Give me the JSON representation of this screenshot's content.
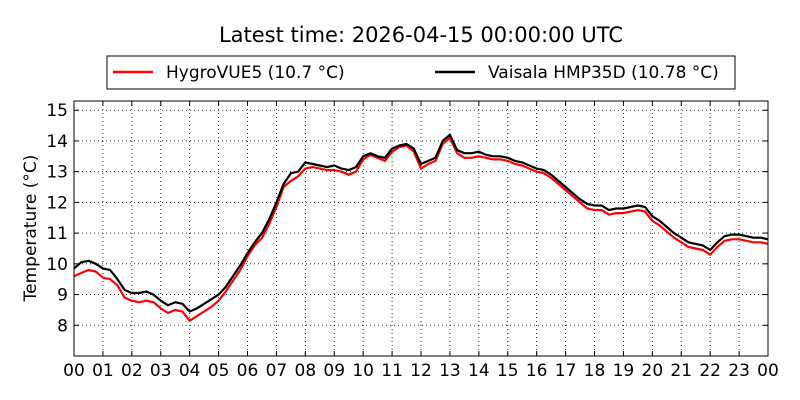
{
  "chart_data": {
    "type": "line",
    "title": "Latest time: 2026-04-15 00:00:00 UTC",
    "xlabel": "",
    "ylabel": "Temperature (°C)",
    "xlim": [
      0,
      24
    ],
    "ylim": [
      7,
      15.3
    ],
    "grid": true,
    "legend_position": "top-center",
    "x_ticks": [
      0,
      1,
      2,
      3,
      4,
      5,
      6,
      7,
      8,
      9,
      10,
      11,
      12,
      13,
      14,
      15,
      16,
      17,
      18,
      19,
      20,
      21,
      22,
      23,
      24
    ],
    "x_tick_labels": [
      "00",
      "01",
      "02",
      "03",
      "04",
      "05",
      "06",
      "07",
      "08",
      "09",
      "10",
      "11",
      "12",
      "13",
      "14",
      "15",
      "16",
      "17",
      "18",
      "19",
      "20",
      "21",
      "22",
      "23",
      "00"
    ],
    "y_ticks": [
      8,
      9,
      10,
      11,
      12,
      13,
      14,
      15
    ],
    "y_tick_labels": [
      "8",
      "9",
      "10",
      "11",
      "12",
      "13",
      "14",
      "15"
    ],
    "series": [
      {
        "name": "HygroVUE5 (10.7 °C)",
        "color": "#ff0000",
        "x": [
          0,
          0.25,
          0.5,
          0.75,
          1,
          1.25,
          1.5,
          1.75,
          2,
          2.25,
          2.5,
          2.75,
          3,
          3.25,
          3.5,
          3.75,
          4,
          4.25,
          4.5,
          4.75,
          5,
          5.25,
          5.5,
          5.75,
          6,
          6.25,
          6.5,
          6.75,
          7,
          7.25,
          7.5,
          7.75,
          8,
          8.25,
          8.5,
          8.75,
          9,
          9.25,
          9.5,
          9.75,
          10,
          10.25,
          10.5,
          10.75,
          11,
          11.25,
          11.5,
          11.75,
          12,
          12.25,
          12.5,
          12.75,
          13,
          13.25,
          13.5,
          13.75,
          14,
          14.25,
          14.5,
          14.75,
          15,
          15.25,
          15.5,
          15.75,
          16,
          16.25,
          16.5,
          16.75,
          17,
          17.25,
          17.5,
          17.75,
          18,
          18.25,
          18.5,
          18.75,
          19,
          19.25,
          19.5,
          19.75,
          20,
          20.25,
          20.5,
          20.75,
          21,
          21.25,
          21.5,
          21.75,
          22,
          22.25,
          22.5,
          22.75,
          23,
          23.25,
          23.5,
          23.75,
          24
        ],
        "y": [
          9.6,
          9.7,
          9.8,
          9.75,
          9.55,
          9.5,
          9.3,
          8.9,
          8.8,
          8.75,
          8.8,
          8.75,
          8.55,
          8.4,
          8.5,
          8.45,
          8.15,
          8.3,
          8.45,
          8.6,
          8.8,
          9.1,
          9.45,
          9.8,
          10.25,
          10.6,
          10.85,
          11.3,
          11.85,
          12.5,
          12.7,
          12.85,
          13.1,
          13.15,
          13.1,
          13.05,
          13.05,
          13.0,
          12.9,
          13.0,
          13.4,
          13.55,
          13.45,
          13.35,
          13.65,
          13.8,
          13.85,
          13.65,
          13.1,
          13.25,
          13.35,
          13.9,
          14.1,
          13.6,
          13.45,
          13.45,
          13.5,
          13.45,
          13.4,
          13.4,
          13.35,
          13.25,
          13.2,
          13.1,
          13.0,
          12.95,
          12.8,
          12.6,
          12.4,
          12.2,
          12.0,
          11.8,
          11.75,
          11.75,
          11.6,
          11.65,
          11.65,
          11.7,
          11.75,
          11.7,
          11.4,
          11.25,
          11.05,
          10.85,
          10.7,
          10.55,
          10.5,
          10.45,
          10.3,
          10.55,
          10.75,
          10.8,
          10.8,
          10.75,
          10.7,
          10.7,
          10.65
        ]
      },
      {
        "name": "Vaisala HMP35D (10.78 °C)",
        "color": "#000000",
        "x": [
          0,
          0.25,
          0.5,
          0.75,
          1,
          1.25,
          1.5,
          1.75,
          2,
          2.25,
          2.5,
          2.75,
          3,
          3.25,
          3.5,
          3.75,
          4,
          4.25,
          4.5,
          4.75,
          5,
          5.25,
          5.5,
          5.75,
          6,
          6.25,
          6.5,
          6.75,
          7,
          7.25,
          7.5,
          7.75,
          8,
          8.25,
          8.5,
          8.75,
          9,
          9.25,
          9.5,
          9.75,
          10,
          10.25,
          10.5,
          10.75,
          11,
          11.25,
          11.5,
          11.75,
          12,
          12.25,
          12.5,
          12.75,
          13,
          13.25,
          13.5,
          13.75,
          14,
          14.25,
          14.5,
          14.75,
          15,
          15.25,
          15.5,
          15.75,
          16,
          16.25,
          16.5,
          16.75,
          17,
          17.25,
          17.5,
          17.75,
          18,
          18.25,
          18.5,
          18.75,
          19,
          19.25,
          19.5,
          19.75,
          20,
          20.25,
          20.5,
          20.75,
          21,
          21.25,
          21.5,
          21.75,
          22,
          22.25,
          22.5,
          22.75,
          23,
          23.25,
          23.5,
          23.75,
          24
        ],
        "y": [
          9.85,
          10.05,
          10.1,
          10.0,
          9.85,
          9.8,
          9.5,
          9.15,
          9.05,
          9.05,
          9.1,
          9.0,
          8.8,
          8.65,
          8.75,
          8.7,
          8.45,
          8.55,
          8.7,
          8.85,
          9.0,
          9.25,
          9.6,
          9.95,
          10.35,
          10.7,
          11.0,
          11.45,
          12.0,
          12.6,
          12.95,
          13.0,
          13.3,
          13.25,
          13.2,
          13.15,
          13.2,
          13.1,
          13.05,
          13.15,
          13.5,
          13.6,
          13.5,
          13.45,
          13.75,
          13.85,
          13.9,
          13.75,
          13.25,
          13.35,
          13.45,
          14.0,
          14.2,
          13.7,
          13.6,
          13.6,
          13.65,
          13.55,
          13.5,
          13.5,
          13.45,
          13.35,
          13.3,
          13.2,
          13.1,
          13.05,
          12.9,
          12.7,
          12.5,
          12.3,
          12.1,
          11.95,
          11.9,
          11.9,
          11.75,
          11.8,
          11.8,
          11.85,
          11.9,
          11.85,
          11.55,
          11.4,
          11.2,
          11.0,
          10.85,
          10.7,
          10.65,
          10.6,
          10.45,
          10.7,
          10.9,
          10.95,
          10.95,
          10.9,
          10.85,
          10.85,
          10.8
        ]
      }
    ]
  }
}
